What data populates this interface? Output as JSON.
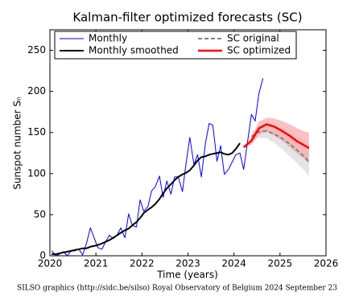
{
  "chart_data": {
    "type": "line",
    "title": "Kalman-filter optimized forecasts (SC)",
    "x_label": "Time (years)",
    "y_label": "Sunspot number Sₙ",
    "footer": "SILSO graphics (http://sidc.be/silso)  Royal Observatory of Belgium  2024 September 23",
    "xlim": [
      2020,
      2026
    ],
    "ylim": [
      0,
      275
    ],
    "xticks": [
      2020,
      2021,
      2022,
      2023,
      2024,
      2025,
      2026
    ],
    "yticks": [
      0,
      50,
      100,
      150,
      200,
      250
    ],
    "grid": false,
    "legend": "upper left",
    "series": [
      {
        "name": "Monthly",
        "color": "#0000ff",
        "linewidth": 1,
        "linestyle": "solid",
        "x": [
          2020.04,
          2020.13,
          2020.21,
          2020.29,
          2020.38,
          2020.46,
          2020.54,
          2020.63,
          2020.71,
          2020.79,
          2020.88,
          2020.96,
          2021.04,
          2021.13,
          2021.21,
          2021.29,
          2021.38,
          2021.46,
          2021.54,
          2021.63,
          2021.71,
          2021.79,
          2021.88,
          2021.96,
          2022.04,
          2022.13,
          2022.21,
          2022.29,
          2022.38,
          2022.46,
          2022.54,
          2022.63,
          2022.71,
          2022.79,
          2022.88,
          2022.96,
          2023.04,
          2023.13,
          2023.21,
          2023.29,
          2023.38,
          2023.46,
          2023.54,
          2023.63,
          2023.71,
          2023.79,
          2023.88,
          2023.96,
          2024.04,
          2024.13,
          2024.21,
          2024.29,
          2024.38,
          2024.46,
          2024.54,
          2024.63
        ],
        "values": [
          6,
          0,
          2,
          5,
          0,
          6,
          6,
          8,
          1,
          14,
          34,
          22,
          10,
          8,
          17,
          25,
          21,
          25,
          34,
          22,
          51,
          37,
          35,
          68,
          54,
          60,
          79,
          84,
          97,
          71,
          91,
          75,
          96,
          96,
          78,
          113,
          144,
          111,
          123,
          96,
          137,
          161,
          159,
          115,
          134,
          99,
          105,
          114,
          123,
          125,
          105,
          137,
          172,
          164,
          197,
          216
        ]
      },
      {
        "name": "Monthly smoothed",
        "color": "#000000",
        "linewidth": 2,
        "linestyle": "solid",
        "x": [
          2020.04,
          2020.13,
          2020.21,
          2020.29,
          2020.38,
          2020.46,
          2020.54,
          2020.63,
          2020.71,
          2020.79,
          2020.88,
          2020.96,
          2021.04,
          2021.13,
          2021.21,
          2021.29,
          2021.38,
          2021.46,
          2021.54,
          2021.63,
          2021.71,
          2021.79,
          2021.88,
          2021.96,
          2022.04,
          2022.13,
          2022.21,
          2022.29,
          2022.38,
          2022.46,
          2022.54,
          2022.63,
          2022.71,
          2022.79,
          2022.88,
          2022.96,
          2023.04,
          2023.13,
          2023.21,
          2023.29,
          2023.38,
          2023.46,
          2023.54,
          2023.63,
          2023.71,
          2023.79,
          2023.88,
          2023.96,
          2024.04,
          2024.13
        ],
        "values": [
          2,
          2,
          3,
          4,
          5,
          6,
          7,
          8,
          9,
          9,
          11,
          12,
          13,
          15,
          17,
          19,
          22,
          25,
          28,
          31,
          33,
          37,
          41,
          46,
          52,
          56,
          59,
          63,
          69,
          76,
          82,
          87,
          92,
          96,
          99,
          101,
          104,
          110,
          116,
          120,
          121,
          123,
          124,
          125,
          126,
          124,
          123,
          125,
          130,
          137
        ]
      },
      {
        "name": "SC original",
        "color": "#808080",
        "linewidth": 2,
        "linestyle": "dashed",
        "band_color": "#d9d9d9",
        "x": [
          2024.38,
          2024.54,
          2024.71,
          2024.88,
          2025.04,
          2025.21,
          2025.38,
          2025.54,
          2025.63
        ],
        "values": [
          145,
          151,
          152,
          148,
          143,
          136,
          128,
          120,
          114
        ],
        "upper": [
          150,
          158,
          160,
          158,
          155,
          150,
          145,
          140,
          135
        ],
        "lower": [
          140,
          144,
          143,
          137,
          130,
          121,
          112,
          103,
          96
        ]
      },
      {
        "name": "SC optimized",
        "color": "#ff0000",
        "linewidth": 2.5,
        "linestyle": "solid",
        "band_color": "#f7a8a8",
        "x": [
          2024.21,
          2024.38,
          2024.54,
          2024.71,
          2024.88,
          2025.04,
          2025.21,
          2025.38,
          2025.54,
          2025.63
        ],
        "values": [
          132,
          140,
          155,
          160,
          157,
          152,
          146,
          139,
          134,
          131
        ],
        "upper": [
          132,
          145,
          163,
          168,
          167,
          164,
          160,
          155,
          151,
          150
        ],
        "lower": [
          132,
          135,
          147,
          151,
          146,
          140,
          132,
          124,
          117,
          112
        ]
      }
    ]
  }
}
